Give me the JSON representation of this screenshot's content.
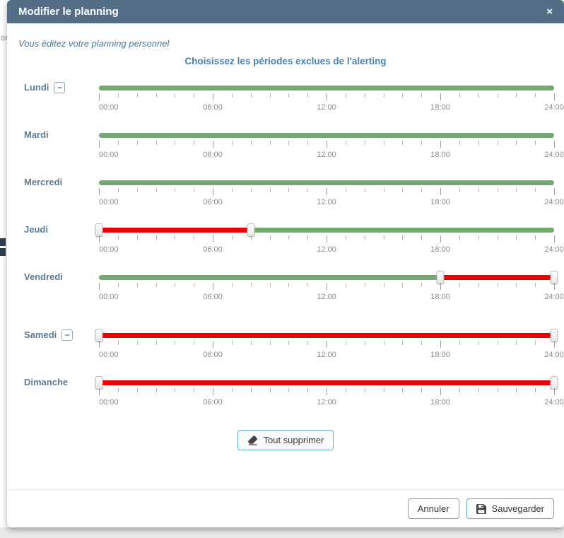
{
  "page": {
    "left_fragment_text": "or"
  },
  "modal": {
    "title": "Modifier le planning",
    "close_label": "×",
    "subtitle": "Vous éditez votre planning personnel",
    "heading": "Choisissez les périodes exclues de l'alerting",
    "remove_symbol": "−"
  },
  "slider": {
    "tick_count": 25,
    "major_every": 6,
    "label_hours": [
      0,
      6,
      12,
      18,
      24
    ],
    "time_labels": [
      "00:00",
      "06:00",
      "12:00",
      "18:00",
      "24:00"
    ]
  },
  "colors": {
    "green": "#72aa72",
    "red": "#ef0000",
    "header_bg": "#546e88",
    "accent_border": "#56adcc"
  },
  "days": [
    {
      "name": "Lundi",
      "remove_button": true,
      "gap_before": false,
      "segments": [
        {
          "from": 0,
          "to": 24,
          "color": "green"
        }
      ],
      "handles": []
    },
    {
      "name": "Mardi",
      "remove_button": false,
      "gap_before": false,
      "segments": [
        {
          "from": 0,
          "to": 24,
          "color": "green"
        }
      ],
      "handles": []
    },
    {
      "name": "Mercredi",
      "remove_button": false,
      "gap_before": false,
      "segments": [
        {
          "from": 0,
          "to": 24,
          "color": "green"
        }
      ],
      "handles": []
    },
    {
      "name": "Jeudi",
      "remove_button": false,
      "gap_before": false,
      "segments": [
        {
          "from": 0,
          "to": 8,
          "color": "red"
        },
        {
          "from": 8,
          "to": 24,
          "color": "green"
        }
      ],
      "handles": [
        0,
        8
      ]
    },
    {
      "name": "Vendredi",
      "remove_button": false,
      "gap_before": false,
      "segments": [
        {
          "from": 0,
          "to": 18,
          "color": "green"
        },
        {
          "from": 18,
          "to": 24,
          "color": "red"
        }
      ],
      "handles": [
        18,
        24
      ]
    },
    {
      "name": "Samedi",
      "remove_button": true,
      "gap_before": true,
      "segments": [
        {
          "from": 0,
          "to": 24,
          "color": "red"
        }
      ],
      "handles": [
        0,
        24
      ]
    },
    {
      "name": "Dimanche",
      "remove_button": false,
      "gap_before": false,
      "segments": [
        {
          "from": 0,
          "to": 24,
          "color": "red"
        }
      ],
      "handles": [
        0,
        24
      ]
    }
  ],
  "footer": {
    "clear_all": "Tout supprimer",
    "cancel": "Annuler",
    "save": "Sauvegarder"
  }
}
